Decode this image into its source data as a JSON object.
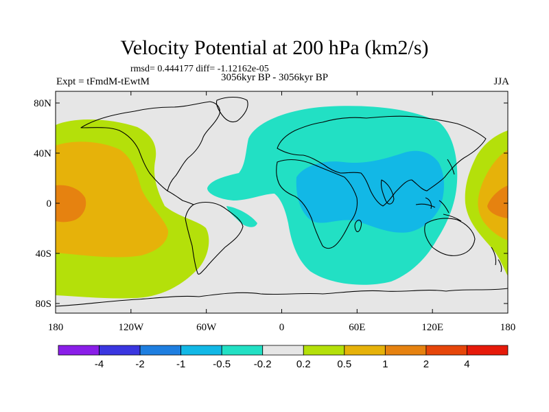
{
  "title": "Velocity Potential at 200 hPa (km2/s)",
  "stats": "rmsd= 0.444177 diff= -1.12162e-05",
  "left_label": "Expt = tFmdM-tEwtM",
  "center_label": "3056kyr BP - 3056kyr BP",
  "right_label": "JJA",
  "x_ticks": [
    "180",
    "120W",
    "60W",
    "0",
    "60E",
    "120E",
    "180"
  ],
  "y_ticks": [
    "80N",
    "40N",
    "0",
    "40S",
    "80S"
  ],
  "colorbar": {
    "colors": [
      "#8a1ee8",
      "#3a36e0",
      "#1e7ee0",
      "#12b8e6",
      "#22e0c4",
      "#e6e6e6",
      "#b4e00a",
      "#e6b20a",
      "#e68210",
      "#e6460a",
      "#e61a0a"
    ],
    "labels": [
      "-4",
      "-2",
      "-1",
      "-0.5",
      "-0.2",
      "0.2",
      "0.5",
      "1",
      "2",
      "4"
    ]
  },
  "field_colors": {
    "background": "#e6e6e6",
    "neg_weak": "#22e0c4",
    "neg_mid": "#12b8e6",
    "pos_weak": "#b4e00a",
    "pos_mid": "#e6b20a",
    "pos_strong": "#e68210"
  }
}
